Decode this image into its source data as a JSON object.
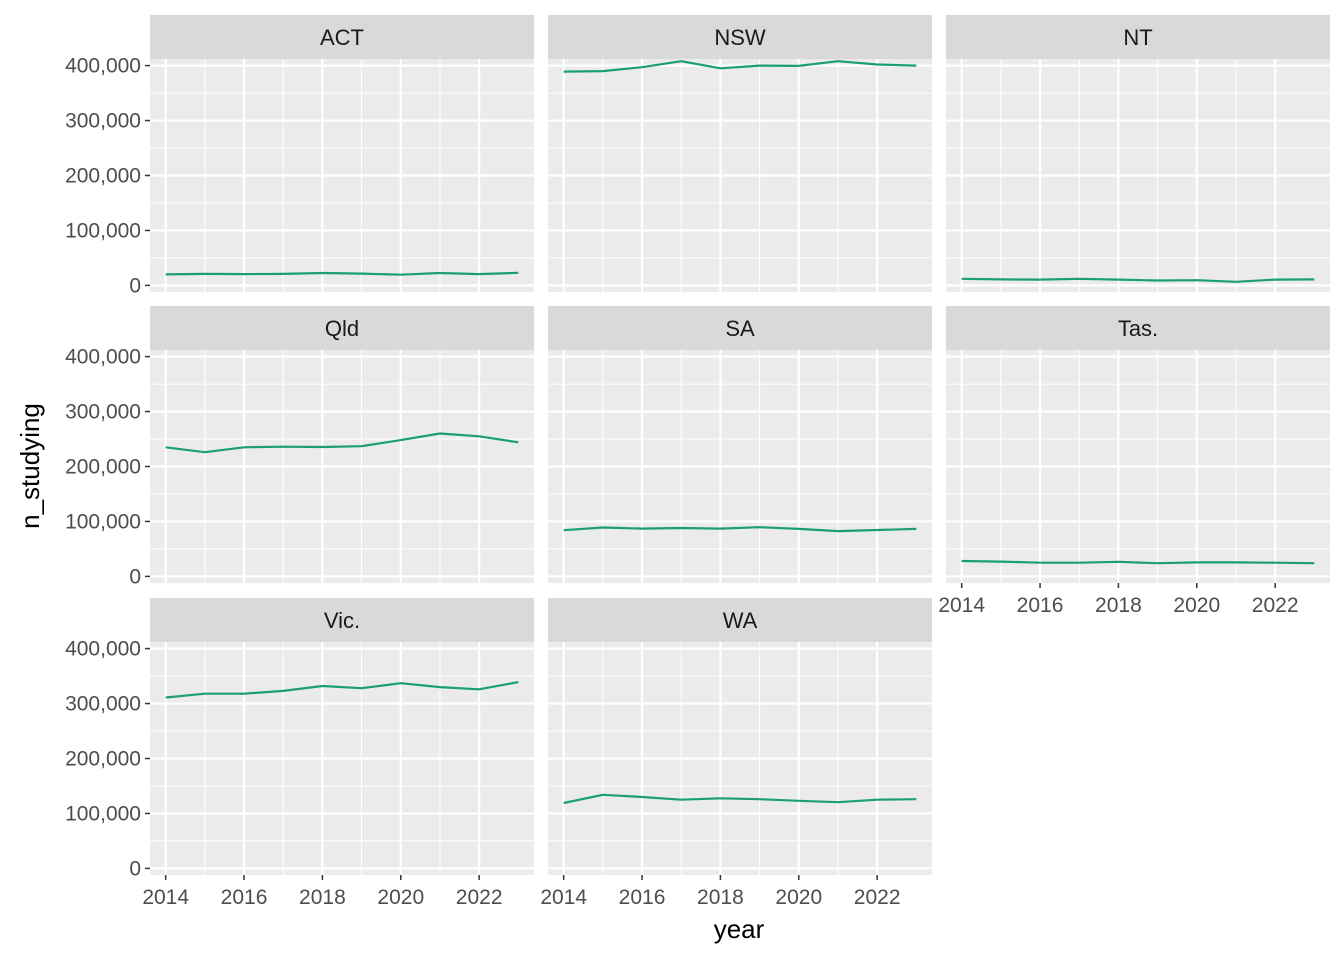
{
  "chart_data": {
    "type": "line",
    "layout": "faceted-grid",
    "xlabel": "year",
    "ylabel": "n_studying",
    "x": [
      2014,
      2015,
      2016,
      2017,
      2018,
      2019,
      2020,
      2021,
      2022,
      2023
    ],
    "xlim": [
      2013.6,
      2023.4
    ],
    "ylim": [
      -12000,
      412000
    ],
    "xticks": [
      2014,
      2016,
      2018,
      2020,
      2022
    ],
    "xtick_labels": [
      "2014",
      "2016",
      "2018",
      "2020",
      "2022"
    ],
    "yticks": [
      0,
      100000,
      200000,
      300000,
      400000
    ],
    "ytick_labels": [
      "0",
      "100,000",
      "200,000",
      "300,000",
      "400,000"
    ],
    "line_color": "#1b9e77",
    "panel_background": "#ebebeb",
    "strip_background": "#d9d9d9",
    "grid": true,
    "facets": [
      {
        "label": "ACT",
        "values": [
          20000,
          21000,
          20500,
          21000,
          22500,
          21500,
          19500,
          22500,
          20500,
          23000
        ]
      },
      {
        "label": "NSW",
        "values": [
          389000,
          390000,
          397000,
          408000,
          395000,
          400000,
          399500,
          408000,
          402000,
          400000
        ]
      },
      {
        "label": "NT",
        "values": [
          12000,
          11000,
          10500,
          12000,
          10500,
          9000,
          9500,
          6500,
          10500,
          11000
        ]
      },
      {
        "label": "Qld",
        "values": [
          235000,
          226000,
          235000,
          236000,
          235500,
          237000,
          248000,
          260000,
          255000,
          244000
        ]
      },
      {
        "label": "SA",
        "values": [
          84000,
          89000,
          87000,
          88000,
          87000,
          89500,
          86500,
          82500,
          84500,
          86500
        ]
      },
      {
        "label": "Tas.",
        "values": [
          28000,
          27000,
          25000,
          25000,
          26500,
          24000,
          25500,
          25500,
          25000,
          24000
        ]
      },
      {
        "label": "Vic.",
        "values": [
          311000,
          318000,
          318000,
          323000,
          332000,
          328000,
          337000,
          330000,
          326000,
          339000
        ]
      },
      {
        "label": "WA",
        "values": [
          119000,
          134000,
          130000,
          125000,
          127500,
          126000,
          123000,
          120500,
          125000,
          126000
        ]
      }
    ]
  }
}
